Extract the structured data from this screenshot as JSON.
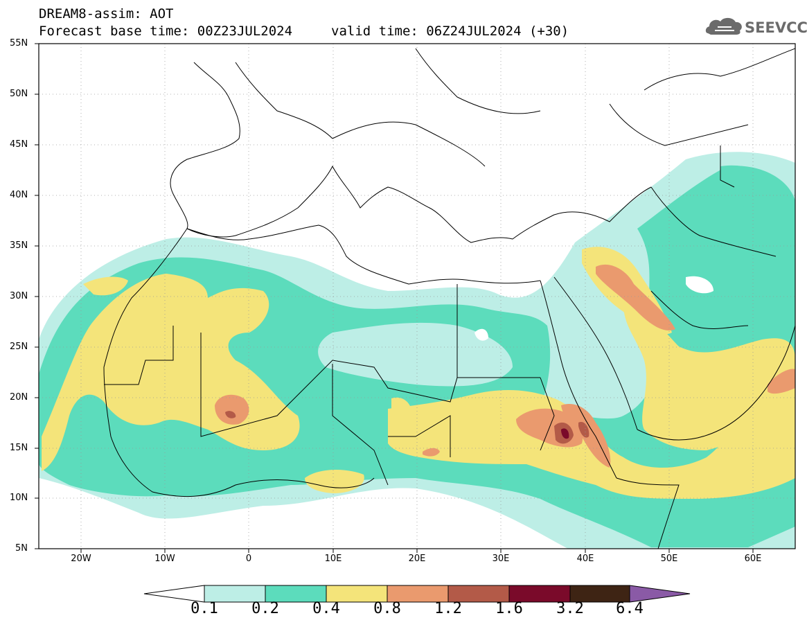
{
  "header": {
    "line1": "DREAM8-assim: AOT",
    "line2": "Forecast base time: 00Z23JUL2024",
    "valid": "valid time: 06Z24JUL2024 (+30)",
    "logo_text": "SEEVCCC"
  },
  "axes": {
    "lat_labels": [
      "55N",
      "50N",
      "45N",
      "40N",
      "35N",
      "30N",
      "25N",
      "20N",
      "15N",
      "10N",
      "5N"
    ],
    "lon_labels": [
      "20W",
      "10W",
      "0",
      "10E",
      "20E",
      "30E",
      "40E",
      "50E",
      "60E"
    ]
  },
  "colorbar": {
    "labels": [
      "0.1",
      "0.2",
      "0.4",
      "0.8",
      "1.2",
      "1.6",
      "3.2",
      "6.4"
    ],
    "colors": [
      "#bdeee6",
      "#5cdcbc",
      "#f4e47a",
      "#ea9a6e",
      "#b35a48",
      "#7a0a2a",
      "#3e2414",
      "#8a5aa6"
    ]
  }
}
